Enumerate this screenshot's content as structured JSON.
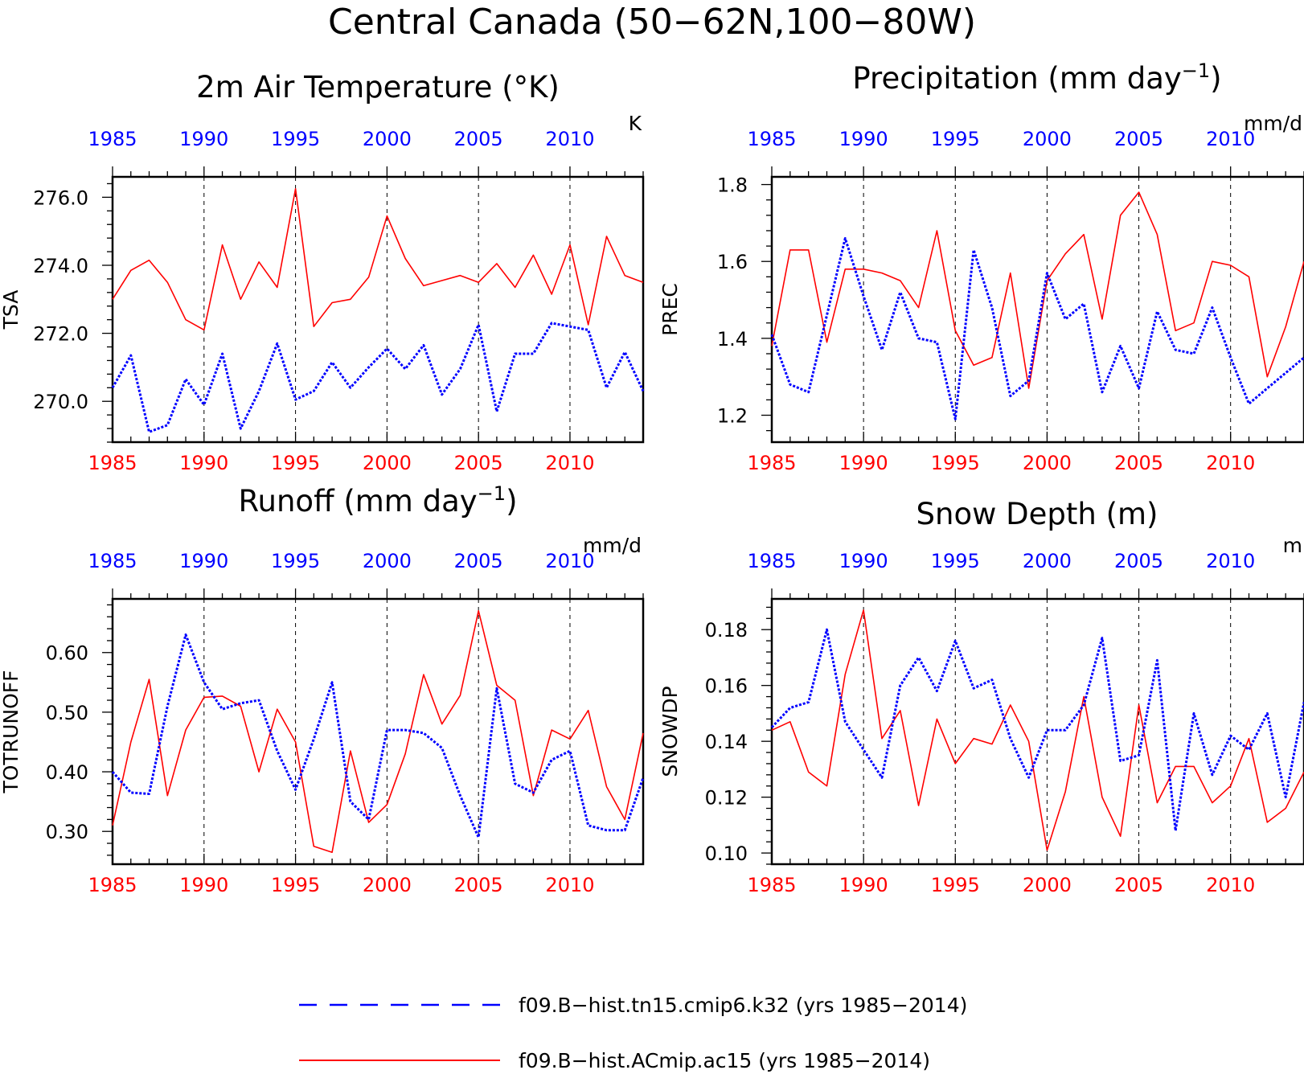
{
  "page_title": "Central Canada (50−62N,100−80W)",
  "colors": {
    "red": "#ff0000",
    "blue": "#0000ff",
    "axis": "#000000"
  },
  "legend": {
    "items": [
      {
        "label": "f09.B−hist.tn15.cmip6.k32 (yrs 1985−2014)",
        "color": "#0000ff",
        "style": "dashed"
      },
      {
        "label": "f09.B−hist.ACmip.ac15 (yrs 1985−2014)",
        "color": "#ff0000",
        "style": "solid"
      }
    ]
  },
  "chart_data": [
    {
      "type": "line",
      "title_main": "2m Air Temperature (°K)",
      "title_sup": "",
      "title_tail": "",
      "ylabel": "TSA",
      "units": "K",
      "xlim": [
        1985,
        2014
      ],
      "xticks": [
        1985,
        1990,
        1995,
        2000,
        2005,
        2010
      ],
      "ylim": [
        268.8,
        276.6
      ],
      "yticks": [
        "270.0",
        "272.0",
        "274.0",
        "276.0"
      ],
      "x": [
        1985,
        1986,
        1987,
        1988,
        1989,
        1990,
        1991,
        1992,
        1993,
        1994,
        1995,
        1996,
        1997,
        1998,
        1999,
        2000,
        2001,
        2002,
        2003,
        2004,
        2005,
        2006,
        2007,
        2008,
        2009,
        2010,
        2011,
        2012,
        2013,
        2014
      ],
      "series": [
        {
          "color": "#ff0000",
          "style": "solid",
          "values": [
            273.0,
            273.85,
            274.15,
            273.5,
            272.4,
            272.1,
            274.6,
            273.0,
            274.1,
            273.35,
            276.25,
            272.2,
            272.9,
            273.0,
            273.65,
            275.45,
            274.2,
            273.4,
            273.55,
            273.7,
            273.5,
            274.05,
            273.35,
            274.3,
            273.15,
            274.6,
            272.25,
            274.85,
            273.7,
            273.5
          ]
        },
        {
          "color": "#0000ff",
          "style": "dotted",
          "values": [
            270.4,
            271.35,
            269.1,
            269.3,
            270.65,
            269.9,
            271.4,
            269.2,
            270.3,
            271.7,
            270.05,
            270.3,
            271.15,
            270.4,
            271.0,
            271.55,
            270.95,
            271.65,
            270.2,
            270.95,
            272.25,
            269.7,
            271.4,
            271.4,
            272.3,
            272.2,
            272.1,
            270.4,
            271.45,
            270.3
          ]
        }
      ]
    },
    {
      "type": "line",
      "title_main": "Precipitation (mm day",
      "title_sup": "−1",
      "title_tail": ")",
      "ylabel": "PREC",
      "units": "mm/d",
      "xlim": [
        1985,
        2014
      ],
      "xticks": [
        1985,
        1990,
        1995,
        2000,
        2005,
        2010
      ],
      "ylim": [
        1.13,
        1.82
      ],
      "yticks": [
        "1.2",
        "1.4",
        "1.6",
        "1.8"
      ],
      "x": [
        1985,
        1986,
        1987,
        1988,
        1989,
        1990,
        1991,
        1992,
        1993,
        1994,
        1995,
        1996,
        1997,
        1998,
        1999,
        2000,
        2001,
        2002,
        2003,
        2004,
        2005,
        2006,
        2007,
        2008,
        2009,
        2010,
        2011,
        2012,
        2013,
        2014
      ],
      "series": [
        {
          "color": "#ff0000",
          "style": "solid",
          "values": [
            1.38,
            1.63,
            1.63,
            1.39,
            1.58,
            1.58,
            1.57,
            1.55,
            1.48,
            1.68,
            1.42,
            1.33,
            1.35,
            1.57,
            1.27,
            1.55,
            1.62,
            1.67,
            1.45,
            1.72,
            1.78,
            1.67,
            1.42,
            1.44,
            1.6,
            1.59,
            1.56,
            1.3,
            1.43,
            1.6
          ]
        },
        {
          "color": "#0000ff",
          "style": "dotted",
          "values": [
            1.41,
            1.28,
            1.26,
            1.46,
            1.66,
            1.51,
            1.37,
            1.52,
            1.4,
            1.39,
            1.19,
            1.63,
            1.48,
            1.25,
            1.29,
            1.57,
            1.45,
            1.49,
            1.26,
            1.38,
            1.27,
            1.47,
            1.37,
            1.36,
            1.48,
            1.35,
            1.23,
            1.27,
            1.31,
            1.35
          ]
        }
      ]
    },
    {
      "type": "line",
      "title_main": "Runoff (mm day",
      "title_sup": "−1",
      "title_tail": ")",
      "ylabel": "TOTRUNOFF",
      "units": "mm/d",
      "xlim": [
        1985,
        2014
      ],
      "xticks": [
        1985,
        1990,
        1995,
        2000,
        2005,
        2010
      ],
      "ylim": [
        0.245,
        0.69
      ],
      "yticks": [
        "0.30",
        "0.40",
        "0.50",
        "0.60"
      ],
      "x": [
        1985,
        1986,
        1987,
        1988,
        1989,
        1990,
        1991,
        1992,
        1993,
        1994,
        1995,
        1996,
        1997,
        1998,
        1999,
        2000,
        2001,
        2002,
        2003,
        2004,
        2005,
        2006,
        2007,
        2008,
        2009,
        2010,
        2011,
        2012,
        2013,
        2014
      ],
      "series": [
        {
          "color": "#ff0000",
          "style": "solid",
          "values": [
            0.31,
            0.45,
            0.555,
            0.36,
            0.47,
            0.525,
            0.527,
            0.51,
            0.4,
            0.505,
            0.45,
            0.275,
            0.265,
            0.435,
            0.315,
            0.345,
            0.43,
            0.563,
            0.48,
            0.528,
            0.67,
            0.545,
            0.52,
            0.36,
            0.47,
            0.455,
            0.503,
            0.375,
            0.32,
            0.465
          ]
        },
        {
          "color": "#0000ff",
          "style": "dotted",
          "values": [
            0.4,
            0.365,
            0.363,
            0.51,
            0.63,
            0.55,
            0.505,
            0.515,
            0.52,
            0.435,
            0.37,
            0.455,
            0.55,
            0.35,
            0.32,
            0.47,
            0.47,
            0.465,
            0.44,
            0.36,
            0.29,
            0.54,
            0.38,
            0.365,
            0.42,
            0.435,
            0.31,
            0.302,
            0.302,
            0.39
          ]
        }
      ]
    },
    {
      "type": "line",
      "title_main": "Snow Depth (m)",
      "title_sup": "",
      "title_tail": "",
      "ylabel": "SNOWDP",
      "units": "m",
      "xlim": [
        1985,
        2014
      ],
      "xticks": [
        1985,
        1990,
        1995,
        2000,
        2005,
        2010
      ],
      "ylim": [
        0.096,
        0.191
      ],
      "yticks": [
        "0.10",
        "0.12",
        "0.14",
        "0.16",
        "0.18"
      ],
      "x": [
        1985,
        1986,
        1987,
        1988,
        1989,
        1990,
        1991,
        1992,
        1993,
        1994,
        1995,
        1996,
        1997,
        1998,
        1999,
        2000,
        2001,
        2002,
        2003,
        2004,
        2005,
        2006,
        2007,
        2008,
        2009,
        2010,
        2011,
        2012,
        2013,
        2014
      ],
      "series": [
        {
          "color": "#ff0000",
          "style": "solid",
          "values": [
            0.144,
            0.147,
            0.129,
            0.124,
            0.164,
            0.187,
            0.141,
            0.151,
            0.117,
            0.148,
            0.132,
            0.141,
            0.139,
            0.153,
            0.14,
            0.101,
            0.122,
            0.156,
            0.12,
            0.106,
            0.153,
            0.118,
            0.131,
            0.131,
            0.118,
            0.124,
            0.141,
            0.111,
            0.116,
            0.129
          ]
        },
        {
          "color": "#0000ff",
          "style": "dotted",
          "values": [
            0.145,
            0.152,
            0.154,
            0.18,
            0.147,
            0.137,
            0.127,
            0.16,
            0.17,
            0.158,
            0.176,
            0.159,
            0.162,
            0.141,
            0.127,
            0.144,
            0.144,
            0.153,
            0.177,
            0.133,
            0.135,
            0.169,
            0.108,
            0.15,
            0.128,
            0.142,
            0.137,
            0.15,
            0.12,
            0.154
          ]
        }
      ]
    }
  ]
}
